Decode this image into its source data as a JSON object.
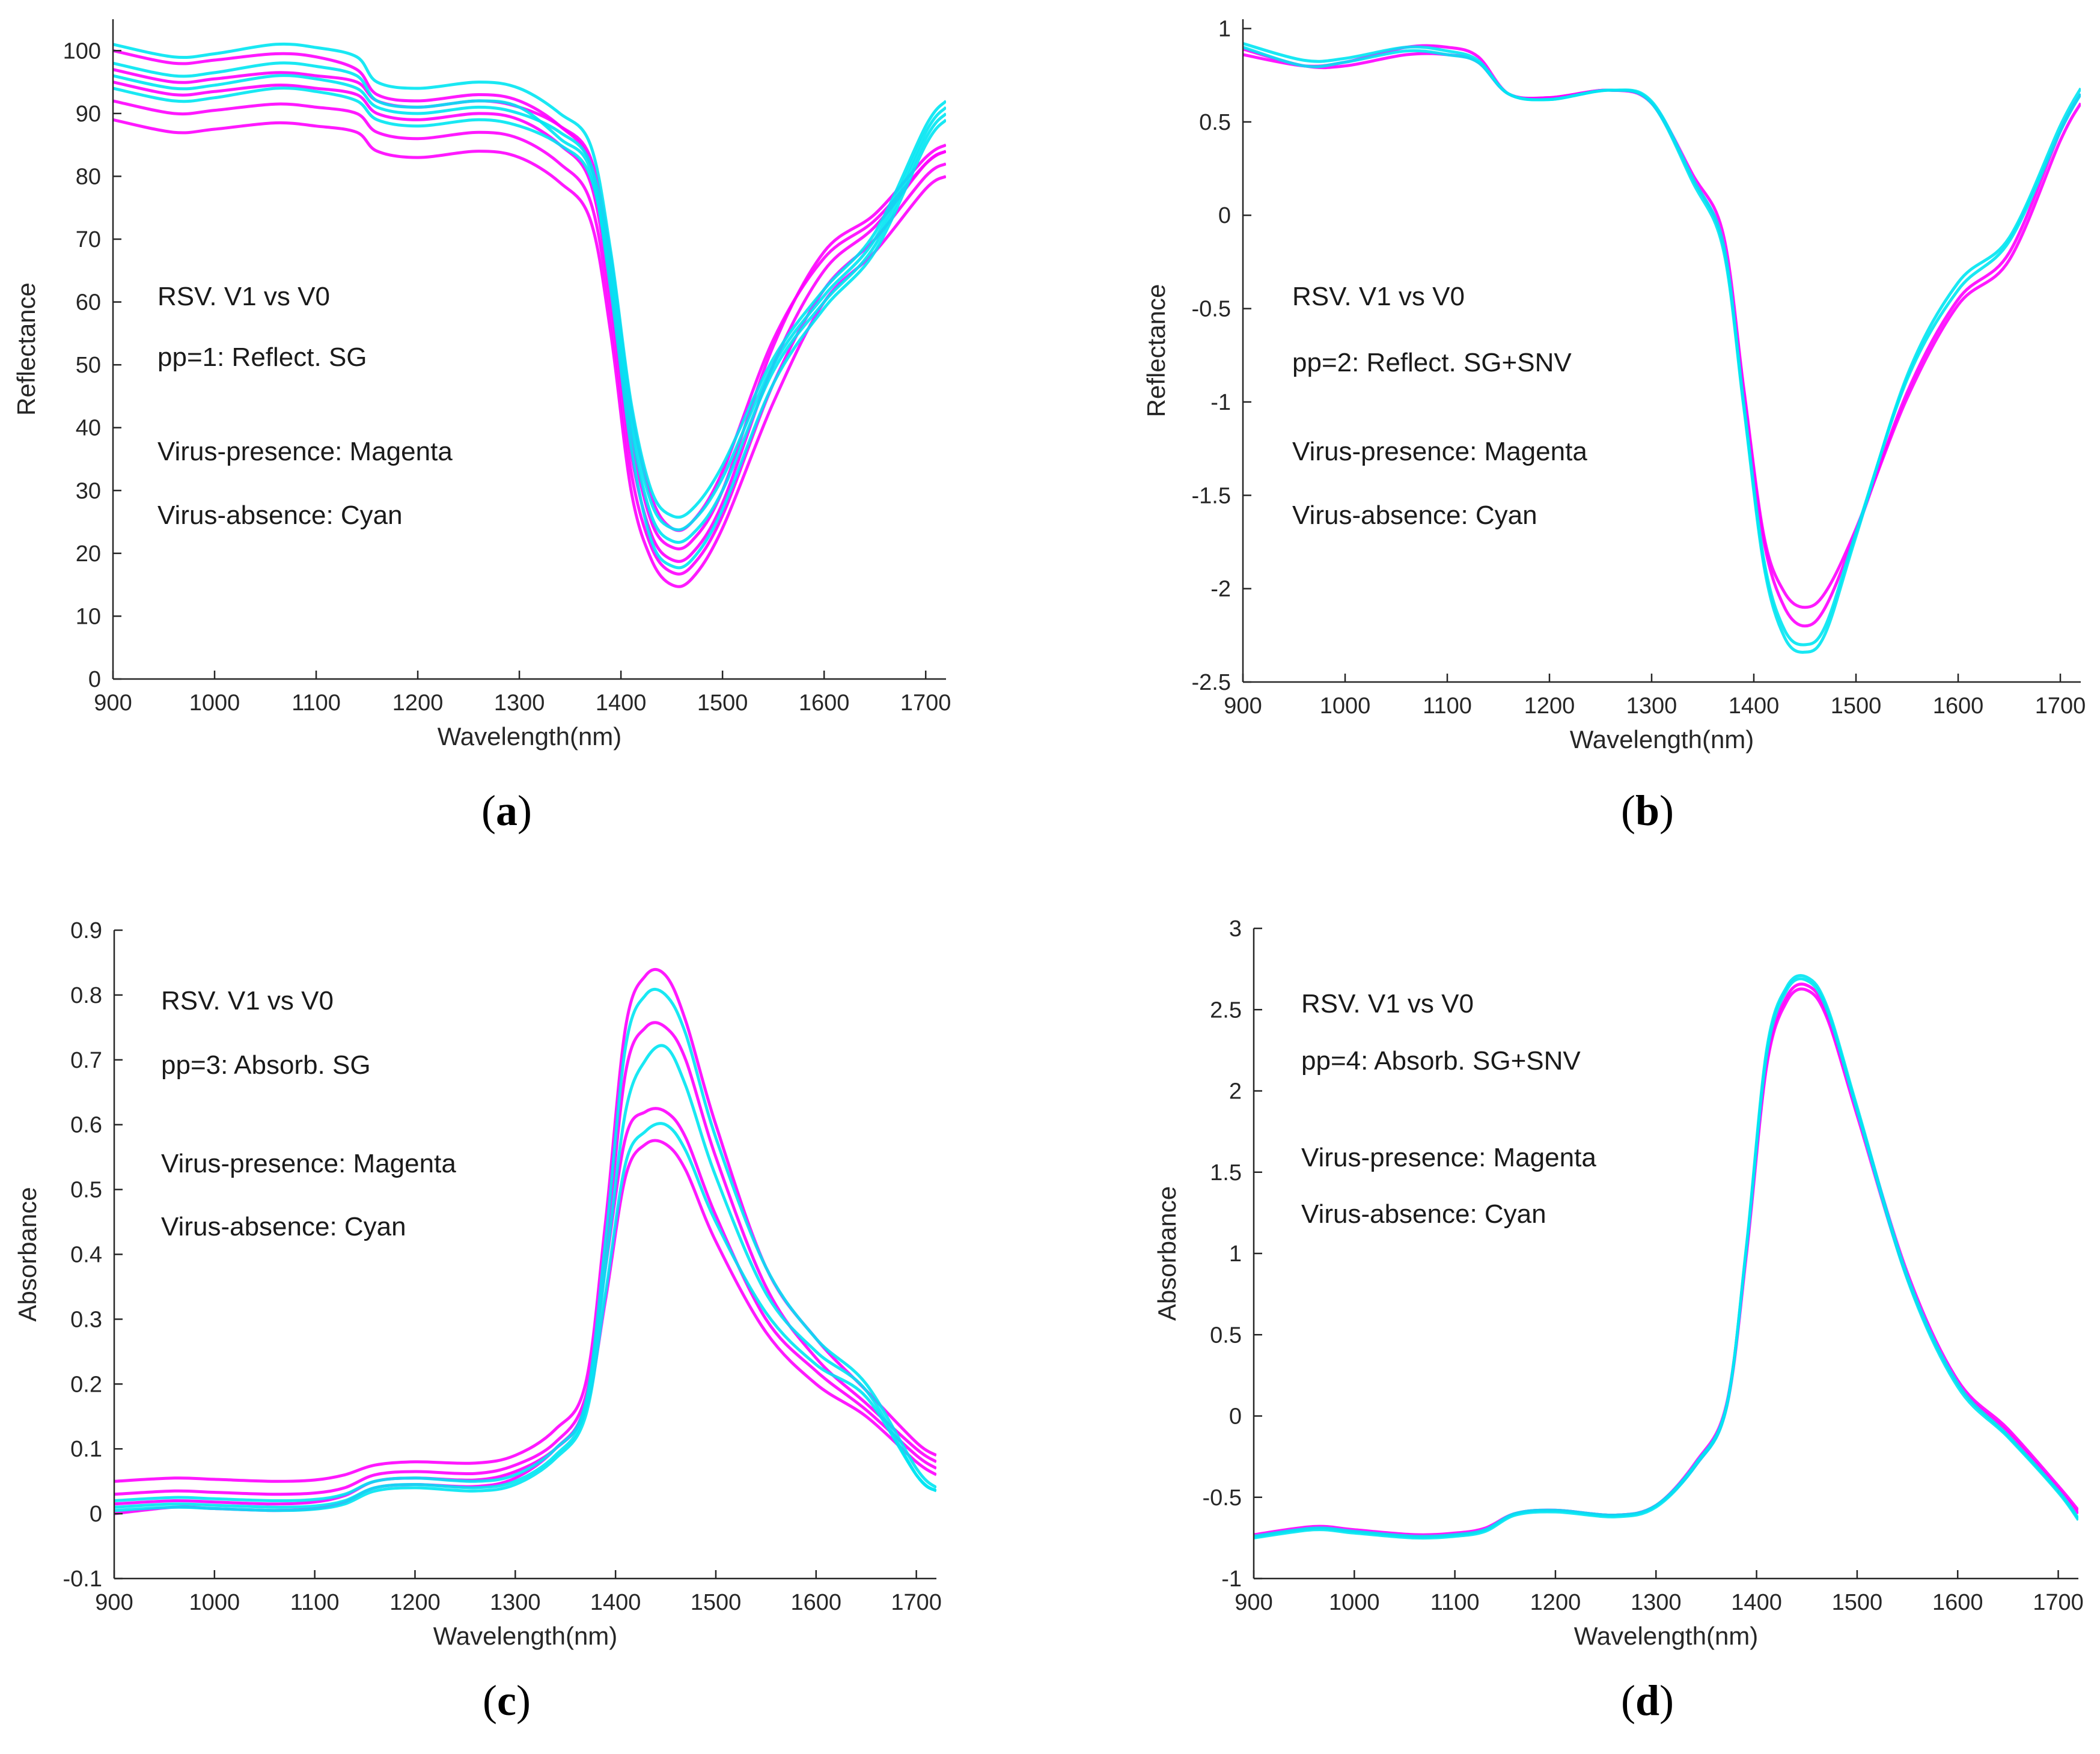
{
  "colors": {
    "magenta": "#ff00ff",
    "cyan": "#00e5f2",
    "axis": "#262626",
    "overlap": "#6a6ee0"
  },
  "chart_data": [
    {
      "type": "line",
      "id": "a",
      "panel_label": "a",
      "xlabel": "Wavelength(nm)",
      "ylabel": "Reflectance",
      "xlim": [
        900,
        1720
      ],
      "ylim": [
        0,
        105
      ],
      "xticks": [
        900,
        1000,
        1100,
        1200,
        1300,
        1400,
        1500,
        1600,
        1700
      ],
      "yticks": [
        0,
        10,
        20,
        30,
        40,
        50,
        60,
        70,
        80,
        90,
        100
      ],
      "ytick_labels": [
        "0",
        "10",
        "20",
        "30",
        "40",
        "50",
        "60",
        "70",
        "80",
        "90",
        "100"
      ],
      "annotations": [
        "RSV. V1 vs V0",
        "pp=1: Reflect. SG",
        "Virus-presence: Magenta",
        "Virus-absence:  Cyan"
      ],
      "x": [
        900,
        960,
        1000,
        1060,
        1100,
        1140,
        1160,
        1200,
        1260,
        1300,
        1340,
        1370,
        1390,
        1410,
        1430,
        1450,
        1470,
        1500,
        1550,
        1600,
        1650,
        1700,
        1720
      ],
      "series": [
        {
          "name": "Virus-presence",
          "color": "magenta",
          "values": [
            89,
            87,
            87.5,
            88.5,
            88,
            87,
            84,
            83,
            84,
            83,
            79,
            73,
            55,
            30,
            19,
            15,
            16,
            24,
            44,
            60,
            68,
            78,
            80
          ]
        },
        {
          "name": "Virus-presence",
          "color": "magenta",
          "values": [
            92,
            90,
            90.5,
            91.5,
            91,
            90,
            87,
            86,
            87,
            86,
            82,
            76,
            58,
            33,
            21,
            17,
            18,
            26,
            47,
            62,
            70,
            80,
            82
          ]
        },
        {
          "name": "Virus-presence",
          "color": "magenta",
          "values": [
            95,
            93,
            93.5,
            94.5,
            94,
            93,
            90,
            89,
            90,
            89,
            85,
            79,
            61,
            36,
            23,
            19,
            20,
            28,
            50,
            65,
            72,
            82,
            84
          ]
        },
        {
          "name": "Virus-presence",
          "color": "magenta",
          "values": [
            100,
            98,
            98.5,
            99.5,
            99,
            97,
            93,
            92,
            93,
            92,
            88,
            82,
            64,
            39,
            25,
            21,
            22,
            30,
            53,
            68,
            74,
            83,
            85
          ]
        },
        {
          "name": "Virus-presence",
          "color": "magenta",
          "values": [
            97,
            95,
            95.5,
            96.5,
            96,
            95,
            92,
            91,
            92,
            91,
            88,
            83,
            67,
            43,
            29,
            24,
            25,
            33,
            54,
            67,
            73,
            82,
            84
          ]
        },
        {
          "name": "Virus-absence",
          "color": "cyan",
          "values": [
            101,
            99,
            99.5,
            101,
            100.5,
            99,
            95,
            94,
            95,
            94,
            90,
            85,
            68,
            44,
            30,
            26,
            27,
            34,
            51,
            62,
            71,
            88,
            92
          ]
        },
        {
          "name": "Virus-absence",
          "color": "cyan",
          "values": [
            96,
            94,
            94.5,
            96,
            95.5,
            94,
            91,
            90,
            91,
            90,
            87,
            82,
            66,
            42,
            28,
            24,
            25,
            32,
            50,
            61,
            70,
            87,
            91
          ]
        },
        {
          "name": "Virus-absence",
          "color": "cyan",
          "values": [
            94,
            92,
            92.5,
            94,
            93.5,
            92,
            89,
            88,
            89,
            88,
            85,
            80,
            64,
            40,
            26,
            22,
            23,
            30,
            49,
            60,
            69,
            86,
            90
          ]
        },
        {
          "name": "Virus-absence",
          "color": "cyan",
          "values": [
            98,
            96,
            96.5,
            98,
            97.5,
            96,
            92,
            91,
            92,
            91,
            86,
            81,
            62,
            37,
            22,
            18,
            19,
            27,
            47,
            59,
            68,
            85,
            89
          ]
        }
      ]
    },
    {
      "type": "line",
      "id": "b",
      "panel_label": "b",
      "xlabel": "Wavelength(nm)",
      "ylabel": "Reflectance",
      "xlim": [
        900,
        1720
      ],
      "ylim": [
        -2.5,
        1.05
      ],
      "xticks": [
        900,
        1000,
        1100,
        1200,
        1300,
        1400,
        1500,
        1600,
        1700
      ],
      "yticks": [
        -2.5,
        -2,
        -1.5,
        -1,
        -0.5,
        0,
        0.5,
        1
      ],
      "ytick_labels": [
        "-2.5",
        "-2",
        "-1.5",
        "-1",
        "-0.5",
        "0",
        "0.5",
        "1"
      ],
      "annotations": [
        "RSV. V1 vs V0",
        "pp=2: Reflect. SG+SNV",
        "Virus-presence: Magenta",
        "Virus-absence:  Cyan"
      ],
      "x": [
        900,
        960,
        1000,
        1060,
        1100,
        1130,
        1160,
        1200,
        1260,
        1300,
        1340,
        1370,
        1390,
        1410,
        1430,
        1450,
        1470,
        1500,
        1550,
        1600,
        1650,
        1700,
        1720
      ],
      "series": [
        {
          "name": "Virus-presence",
          "color": "magenta",
          "values": [
            0.86,
            0.8,
            0.82,
            0.9,
            0.9,
            0.85,
            0.65,
            0.63,
            0.67,
            0.6,
            0.2,
            -0.15,
            -0.95,
            -1.75,
            -2.1,
            -2.2,
            -2.1,
            -1.7,
            -0.95,
            -0.45,
            -0.2,
            0.45,
            0.65
          ]
        },
        {
          "name": "Virus-presence",
          "color": "magenta",
          "values": [
            0.89,
            0.8,
            0.8,
            0.86,
            0.86,
            0.82,
            0.65,
            0.63,
            0.67,
            0.6,
            0.22,
            -0.1,
            -0.92,
            -1.72,
            -2.02,
            -2.1,
            -2.02,
            -1.68,
            -0.98,
            -0.48,
            -0.24,
            0.4,
            0.6
          ]
        },
        {
          "name": "Virus-absence",
          "color": "cyan",
          "values": [
            0.92,
            0.83,
            0.84,
            0.9,
            0.88,
            0.83,
            0.65,
            0.62,
            0.67,
            0.61,
            0.2,
            -0.15,
            -1.0,
            -1.85,
            -2.22,
            -2.3,
            -2.2,
            -1.7,
            -0.88,
            -0.4,
            -0.14,
            0.45,
            0.65
          ]
        },
        {
          "name": "Virus-absence",
          "color": "cyan",
          "values": [
            0.9,
            0.8,
            0.82,
            0.88,
            0.86,
            0.82,
            0.65,
            0.62,
            0.67,
            0.6,
            0.18,
            -0.18,
            -1.02,
            -1.88,
            -2.26,
            -2.34,
            -2.24,
            -1.72,
            -0.86,
            -0.36,
            -0.12,
            0.48,
            0.68
          ]
        }
      ]
    },
    {
      "type": "line",
      "id": "c",
      "panel_label": "c",
      "xlabel": "Wavelength(nm)",
      "ylabel": "Absorbance",
      "xlim": [
        900,
        1720
      ],
      "ylim": [
        -0.1,
        0.9
      ],
      "xticks": [
        900,
        1000,
        1100,
        1200,
        1300,
        1400,
        1500,
        1600,
        1700
      ],
      "yticks": [
        -0.1,
        0,
        0.1,
        0.2,
        0.3,
        0.4,
        0.5,
        0.6,
        0.7,
        0.8,
        0.9
      ],
      "ytick_labels": [
        "-0.1",
        "0",
        "0.1",
        "0.2",
        "0.3",
        "0.4",
        "0.5",
        "0.6",
        "0.7",
        "0.8",
        "0.9"
      ],
      "annotations": [
        "RSV. V1 vs V0",
        "pp=3: Absorb. SG",
        "Virus-presence: Magenta",
        "Virus-absence:  Cyan"
      ],
      "x": [
        900,
        960,
        1000,
        1060,
        1100,
        1130,
        1160,
        1200,
        1260,
        1300,
        1340,
        1370,
        1390,
        1410,
        1430,
        1450,
        1470,
        1500,
        1550,
        1600,
        1650,
        1700,
        1720
      ],
      "series": [
        {
          "name": "Virus-presence",
          "color": "magenta",
          "values": [
            0.05,
            0.055,
            0.053,
            0.05,
            0.052,
            0.06,
            0.075,
            0.08,
            0.078,
            0.09,
            0.13,
            0.2,
            0.45,
            0.75,
            0.83,
            0.83,
            0.76,
            0.6,
            0.38,
            0.27,
            0.19,
            0.11,
            0.09
          ]
        },
        {
          "name": "Virus-presence",
          "color": "magenta",
          "values": [
            0.0,
            0.01,
            0.008,
            0.005,
            0.008,
            0.018,
            0.04,
            0.045,
            0.042,
            0.055,
            0.1,
            0.17,
            0.4,
            0.68,
            0.75,
            0.75,
            0.7,
            0.55,
            0.35,
            0.24,
            0.17,
            0.1,
            0.08
          ]
        },
        {
          "name": "Virus-presence",
          "color": "magenta",
          "values": [
            0.03,
            0.035,
            0.033,
            0.03,
            0.032,
            0.04,
            0.06,
            0.065,
            0.062,
            0.075,
            0.11,
            0.18,
            0.38,
            0.58,
            0.62,
            0.62,
            0.58,
            0.46,
            0.3,
            0.22,
            0.16,
            0.09,
            0.07
          ]
        },
        {
          "name": "Virus-presence",
          "color": "magenta",
          "values": [
            0.015,
            0.02,
            0.018,
            0.015,
            0.018,
            0.028,
            0.05,
            0.055,
            0.052,
            0.065,
            0.1,
            0.16,
            0.33,
            0.52,
            0.57,
            0.57,
            0.53,
            0.42,
            0.28,
            0.2,
            0.15,
            0.08,
            0.06
          ]
        },
        {
          "name": "Virus-absence",
          "color": "cyan",
          "values": [
            0.02,
            0.025,
            0.023,
            0.02,
            0.022,
            0.03,
            0.05,
            0.055,
            0.05,
            0.06,
            0.1,
            0.17,
            0.42,
            0.72,
            0.8,
            0.8,
            0.74,
            0.58,
            0.38,
            0.27,
            0.2,
            0.07,
            0.04
          ]
        },
        {
          "name": "Virus-absence",
          "color": "cyan",
          "values": [
            0.01,
            0.015,
            0.013,
            0.01,
            0.012,
            0.02,
            0.04,
            0.045,
            0.04,
            0.05,
            0.09,
            0.16,
            0.38,
            0.62,
            0.7,
            0.72,
            0.66,
            0.52,
            0.34,
            0.25,
            0.19,
            0.06,
            0.035
          ]
        },
        {
          "name": "Virus-absence",
          "color": "cyan",
          "values": [
            0.005,
            0.01,
            0.008,
            0.005,
            0.007,
            0.015,
            0.035,
            0.04,
            0.035,
            0.045,
            0.085,
            0.15,
            0.34,
            0.54,
            0.59,
            0.6,
            0.56,
            0.45,
            0.31,
            0.23,
            0.18,
            0.06,
            0.035
          ]
        }
      ]
    },
    {
      "type": "line",
      "id": "d",
      "panel_label": "d",
      "xlabel": "Wavelength(nm)",
      "ylabel": "Absorbance",
      "xlim": [
        900,
        1720
      ],
      "ylim": [
        -1,
        3
      ],
      "xticks": [
        900,
        1000,
        1100,
        1200,
        1300,
        1400,
        1500,
        1600,
        1700
      ],
      "yticks": [
        -1,
        -0.5,
        0,
        0.5,
        1,
        1.5,
        2,
        2.5,
        3
      ],
      "ytick_labels": [
        "-1",
        "-0.5",
        "0",
        "0.5",
        "1",
        "1.5",
        "2",
        "2.5",
        "3"
      ],
      "annotations": [
        "RSV. V1 vs V0",
        "pp=4: Absorb. SG+SNV",
        "Virus-presence: Magenta",
        "Virus-absence:  Cyan"
      ],
      "x": [
        900,
        960,
        1000,
        1060,
        1100,
        1130,
        1160,
        1200,
        1260,
        1300,
        1340,
        1370,
        1390,
        1410,
        1430,
        1450,
        1470,
        1500,
        1550,
        1600,
        1650,
        1700,
        1720
      ],
      "series": [
        {
          "name": "Virus-presence",
          "color": "magenta",
          "values": [
            -0.74,
            -0.69,
            -0.71,
            -0.74,
            -0.73,
            -0.7,
            -0.6,
            -0.58,
            -0.61,
            -0.55,
            -0.3,
            0.05,
            1.0,
            2.15,
            2.55,
            2.62,
            2.45,
            1.85,
            0.85,
            0.2,
            -0.1,
            -0.45,
            -0.6
          ]
        },
        {
          "name": "Virus-presence",
          "color": "magenta",
          "values": [
            -0.73,
            -0.68,
            -0.7,
            -0.73,
            -0.72,
            -0.69,
            -0.6,
            -0.58,
            -0.61,
            -0.55,
            -0.28,
            0.07,
            1.02,
            2.18,
            2.58,
            2.65,
            2.48,
            1.88,
            0.88,
            0.22,
            -0.08,
            -0.43,
            -0.58
          ]
        },
        {
          "name": "Virus-absence",
          "color": "cyan",
          "values": [
            -0.75,
            -0.7,
            -0.72,
            -0.75,
            -0.74,
            -0.71,
            -0.61,
            -0.59,
            -0.62,
            -0.56,
            -0.3,
            0.05,
            1.05,
            2.25,
            2.64,
            2.7,
            2.52,
            1.9,
            0.86,
            0.2,
            -0.12,
            -0.46,
            -0.63
          ]
        },
        {
          "name": "Virus-absence",
          "color": "cyan",
          "values": [
            -0.74,
            -0.69,
            -0.71,
            -0.74,
            -0.73,
            -0.7,
            -0.6,
            -0.58,
            -0.61,
            -0.55,
            -0.29,
            0.06,
            1.04,
            2.22,
            2.62,
            2.68,
            2.5,
            1.88,
            0.84,
            0.18,
            -0.13,
            -0.47,
            -0.64
          ]
        }
      ]
    }
  ]
}
